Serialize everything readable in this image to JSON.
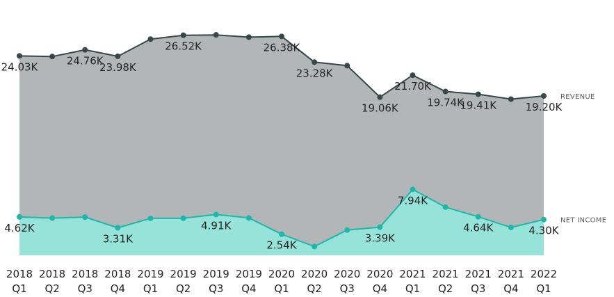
{
  "chart_data": {
    "type": "area",
    "title": "",
    "xlabel": "",
    "ylabel": "",
    "categories": [
      [
        "2018",
        "Q1"
      ],
      [
        "2018",
        "Q2"
      ],
      [
        "2018",
        "Q3"
      ],
      [
        "2018",
        "Q4"
      ],
      [
        "2019",
        "Q1"
      ],
      [
        "2019",
        "Q2"
      ],
      [
        "2019",
        "Q3"
      ],
      [
        "2019",
        "Q4"
      ],
      [
        "2020",
        "Q1"
      ],
      [
        "2020",
        "Q2"
      ],
      [
        "2020",
        "Q3"
      ],
      [
        "2020",
        "Q4"
      ],
      [
        "2021",
        "Q1"
      ],
      [
        "2021",
        "Q2"
      ],
      [
        "2021",
        "Q3"
      ],
      [
        "2021",
        "Q4"
      ],
      [
        "2022",
        "Q1"
      ]
    ],
    "ylim": [
      0,
      28000
    ],
    "grid": false,
    "legend": "none",
    "series": [
      {
        "name": "REVENUE",
        "color_line": "#374649",
        "color_fill": "#b3b6b7",
        "values": [
          24030,
          23950,
          24760,
          23980,
          26050,
          26520,
          26560,
          26290,
          26380,
          23280,
          22850,
          19060,
          21700,
          19740,
          19410,
          18820,
          19200
        ],
        "data_labels": [
          "24.03K",
          null,
          "24.76K",
          "23.98K",
          null,
          "26.52K",
          null,
          null,
          "26.38K",
          "23.28K",
          null,
          "19.06K",
          "21.70K",
          "19.74K",
          "19.41K",
          null,
          "19.20K"
        ]
      },
      {
        "name": "NET INCOME",
        "color_line": "#1fb8a8",
        "color_fill": "#96e3da",
        "values": [
          4620,
          4480,
          4600,
          3310,
          4450,
          4460,
          4910,
          4500,
          2540,
          1050,
          3040,
          3390,
          7940,
          5800,
          4640,
          3360,
          4300
        ],
        "data_labels": [
          "4.62K",
          null,
          null,
          "3.31K",
          null,
          null,
          "4.91K",
          null,
          "2.54K",
          null,
          null,
          "3.39K",
          "7.94K",
          null,
          "4.64K",
          null,
          "4.30K"
        ]
      }
    ]
  }
}
